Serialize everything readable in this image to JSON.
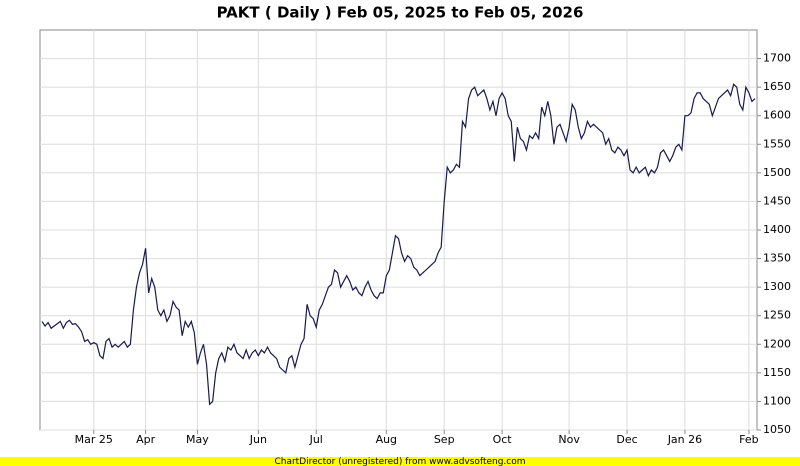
{
  "chart_data": {
    "type": "line",
    "title": "PAKT ( Daily ) Feb 05, 2025 to Feb 05, 2026",
    "footer": "ChartDirector (unregistered) from www.advsofteng.com",
    "categories": [
      null,
      null,
      null,
      null,
      null,
      null,
      null,
      null,
      null,
      null,
      null,
      null,
      null,
      null,
      null,
      null,
      null,
      "Mar 25",
      null,
      null,
      null,
      null,
      null,
      null,
      null,
      null,
      null,
      null,
      null,
      null,
      null,
      null,
      null,
      null,
      "Apr",
      null,
      null,
      null,
      null,
      null,
      null,
      null,
      null,
      null,
      null,
      null,
      null,
      null,
      null,
      null,
      null,
      "May",
      null,
      null,
      null,
      null,
      null,
      null,
      null,
      null,
      null,
      null,
      null,
      null,
      null,
      null,
      null,
      null,
      null,
      null,
      null,
      "Jun",
      null,
      null,
      null,
      null,
      null,
      null,
      null,
      null,
      null,
      null,
      null,
      null,
      null,
      null,
      null,
      null,
      null,
      null,
      "Jul",
      null,
      null,
      null,
      null,
      null,
      null,
      null,
      null,
      null,
      null,
      null,
      null,
      null,
      null,
      null,
      null,
      null,
      null,
      null,
      null,
      null,
      null,
      "Aug",
      null,
      null,
      null,
      null,
      null,
      null,
      null,
      null,
      null,
      null,
      null,
      null,
      null,
      null,
      null,
      null,
      null,
      null,
      "Sep",
      null,
      null,
      null,
      null,
      null,
      null,
      null,
      null,
      null,
      null,
      null,
      null,
      null,
      null,
      null,
      null,
      null,
      null,
      "Oct",
      null,
      null,
      null,
      null,
      null,
      null,
      null,
      null,
      null,
      null,
      null,
      null,
      null,
      null,
      null,
      null,
      null,
      null,
      null,
      null,
      null,
      "Nov",
      null,
      null,
      null,
      null,
      null,
      null,
      null,
      null,
      null,
      null,
      null,
      null,
      null,
      null,
      null,
      null,
      null,
      null,
      "Dec",
      null,
      null,
      null,
      null,
      null,
      null,
      null,
      null,
      null,
      null,
      null,
      null,
      null,
      null,
      null,
      null,
      null,
      null,
      "Jan 26",
      null,
      null,
      null,
      null,
      null,
      null,
      null,
      null,
      null,
      null,
      null,
      null,
      null,
      null,
      null,
      null,
      null,
      null,
      null,
      null,
      "Feb",
      null,
      null
    ],
    "values": [
      1240,
      1232,
      1238,
      1228,
      1232,
      1236,
      1240,
      1228,
      1238,
      1242,
      1235,
      1236,
      1230,
      1222,
      1205,
      1208,
      1200,
      1203,
      1200,
      1180,
      1175,
      1205,
      1210,
      1195,
      1200,
      1195,
      1200,
      1205,
      1195,
      1200,
      1260,
      1300,
      1325,
      1340,
      1368,
      1290,
      1315,
      1300,
      1260,
      1250,
      1260,
      1240,
      1250,
      1275,
      1265,
      1260,
      1215,
      1240,
      1230,
      1240,
      1220,
      1165,
      1185,
      1200,
      1165,
      1095,
      1100,
      1150,
      1175,
      1185,
      1170,
      1195,
      1190,
      1200,
      1185,
      1180,
      1175,
      1190,
      1175,
      1185,
      1190,
      1180,
      1190,
      1185,
      1195,
      1185,
      1180,
      1175,
      1160,
      1155,
      1150,
      1175,
      1180,
      1160,
      1180,
      1200,
      1210,
      1270,
      1250,
      1245,
      1230,
      1260,
      1270,
      1285,
      1300,
      1305,
      1330,
      1325,
      1300,
      1310,
      1320,
      1310,
      1295,
      1300,
      1290,
      1285,
      1300,
      1310,
      1295,
      1285,
      1280,
      1290,
      1290,
      1320,
      1330,
      1360,
      1390,
      1385,
      1360,
      1345,
      1355,
      1350,
      1335,
      1330,
      1320,
      1325,
      1330,
      1335,
      1340,
      1345,
      1360,
      1370,
      1450,
      1510,
      1500,
      1505,
      1515,
      1510,
      1590,
      1580,
      1630,
      1645,
      1650,
      1635,
      1640,
      1645,
      1630,
      1610,
      1625,
      1600,
      1630,
      1640,
      1630,
      1600,
      1590,
      1520,
      1580,
      1560,
      1555,
      1540,
      1565,
      1560,
      1570,
      1560,
      1615,
      1600,
      1625,
      1600,
      1550,
      1580,
      1585,
      1570,
      1555,
      1580,
      1620,
      1610,
      1580,
      1560,
      1570,
      1590,
      1580,
      1585,
      1580,
      1575,
      1570,
      1550,
      1560,
      1540,
      1535,
      1545,
      1540,
      1530,
      1540,
      1505,
      1500,
      1510,
      1500,
      1505,
      1510,
      1495,
      1505,
      1500,
      1510,
      1535,
      1540,
      1530,
      1520,
      1530,
      1545,
      1550,
      1540,
      1600,
      1600,
      1605,
      1630,
      1640,
      1640,
      1630,
      1625,
      1620,
      1600,
      1615,
      1630,
      1635,
      1640,
      1645,
      1635,
      1655,
      1650,
      1620,
      1610,
      1650,
      1640,
      1625,
      1630
    ],
    "color": "#1a1a4e",
    "ylim": [
      1050,
      1750
    ],
    "yticks": [
      1050,
      1100,
      1150,
      1200,
      1250,
      1300,
      1350,
      1400,
      1450,
      1500,
      1550,
      1600,
      1650,
      1700
    ],
    "grid": true
  }
}
